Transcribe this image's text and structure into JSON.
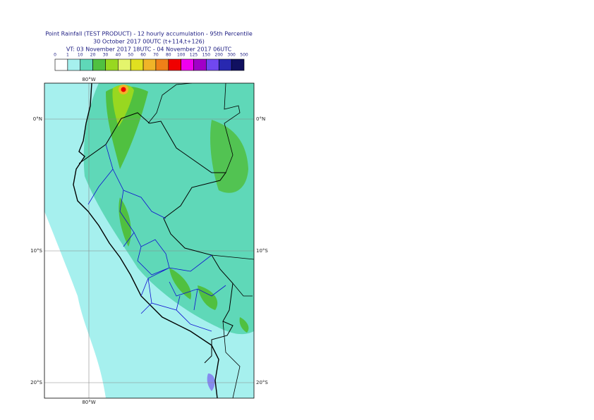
{
  "header": {
    "lines": [
      "Point Rainfall (TEST PRODUCT) - 12 hourly accumulation - 95th Percentile",
      "30 October 2017 00UTC (t+114,t+126)",
      "VT: 03 November 2017 18UTC - 04 November 2017 06UTC"
    ]
  },
  "legend": {
    "labels": [
      0,
      1,
      10,
      20,
      30,
      40,
      50,
      60,
      70,
      80,
      100,
      125,
      150,
      200,
      300,
      500
    ],
    "colors": [
      "#ffffff",
      "#a6f0ee",
      "#5fd8b8",
      "#50c040",
      "#98d820",
      "#e4f46c",
      "#e0e020",
      "#f0b428",
      "#f08018",
      "#f00000",
      "#f000f0",
      "#a000c8",
      "#7048f0",
      "#2828b0",
      "#101060"
    ]
  },
  "map": {
    "lon_labels": [
      "80°W"
    ],
    "lat_labels": [
      "0°N",
      "10°S",
      "20°S"
    ]
  }
}
